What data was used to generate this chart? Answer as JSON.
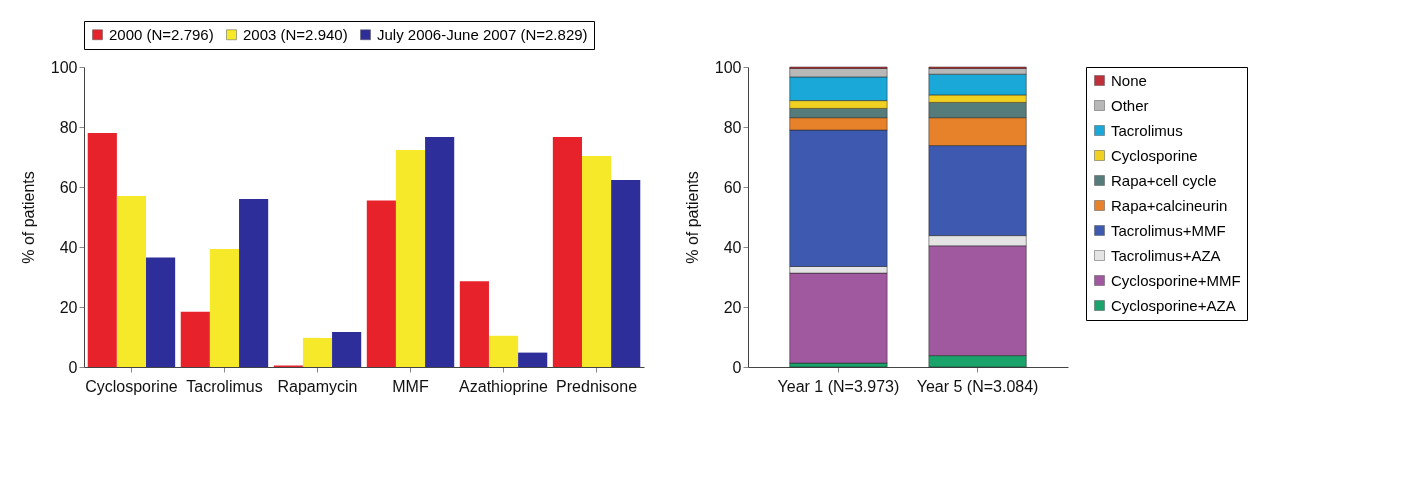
{
  "chart_data": [
    {
      "type": "bar",
      "ylabel": "% of patients",
      "categories": [
        "Cyclosporine",
        "Tacrolimus",
        "Rapamycin",
        "MMF",
        "Azathioprine",
        "Prednisone"
      ],
      "ylim": [
        0,
        100
      ],
      "yticks": [
        0,
        20,
        40,
        60,
        80,
        100
      ],
      "legend": "top",
      "series": [
        {
          "name": "2000 (N=2.796)",
          "color": "#e8222a",
          "values": [
            78,
            18.4,
            0.5,
            55.5,
            28.6,
            76.7
          ]
        },
        {
          "name": "2003 (N=2.940)",
          "color": "#f5e92a",
          "values": [
            57,
            39.3,
            9.7,
            72.3,
            10.4,
            70.3
          ]
        },
        {
          "name": "July 2006-June 2007 (N=2.829)",
          "color": "#2e2e9a",
          "values": [
            36.5,
            56,
            11.7,
            76.7,
            4.8,
            62.3
          ]
        }
      ]
    },
    {
      "type": "bar",
      "stacked": true,
      "ylabel": "% of patients",
      "categories": [
        "Year 1 (N=3.973)",
        "Year 5 (N=3.084)"
      ],
      "ylim": [
        0,
        100
      ],
      "yticks": [
        0,
        20,
        40,
        60,
        80,
        100
      ],
      "legend": "right",
      "series": [
        {
          "name": "Cyclosporine+AZA",
          "color": "#1aa36a",
          "values": [
            1.3,
            3.8
          ]
        },
        {
          "name": "Cyclosporine+MMF",
          "color": "#a0589e",
          "values": [
            30,
            36.6
          ]
        },
        {
          "name": "Tacrolimus+AZA",
          "color": "#e4e4e4",
          "values": [
            2.2,
            3.4
          ]
        },
        {
          "name": "Tacrolimus+MMF",
          "color": "#3d5ab0",
          "values": [
            45.5,
            30
          ]
        },
        {
          "name": "Rapa+calcineurin",
          "color": "#e8822a",
          "values": [
            4.1,
            9.3
          ]
        },
        {
          "name": "Rapa+cell cycle",
          "color": "#557b7b",
          "values": [
            3.1,
            5.1
          ]
        },
        {
          "name": "Cyclosporine",
          "color": "#f0d020",
          "values": [
            2.6,
            2.5
          ]
        },
        {
          "name": "Tacrolimus",
          "color": "#1aa8d8",
          "values": [
            7.9,
            6.9
          ]
        },
        {
          "name": "Other",
          "color": "#b8b8b8",
          "values": [
            2.8,
            1.9
          ]
        },
        {
          "name": "None",
          "color": "#c0303a",
          "values": [
            0.5,
            0.5
          ]
        }
      ]
    }
  ]
}
